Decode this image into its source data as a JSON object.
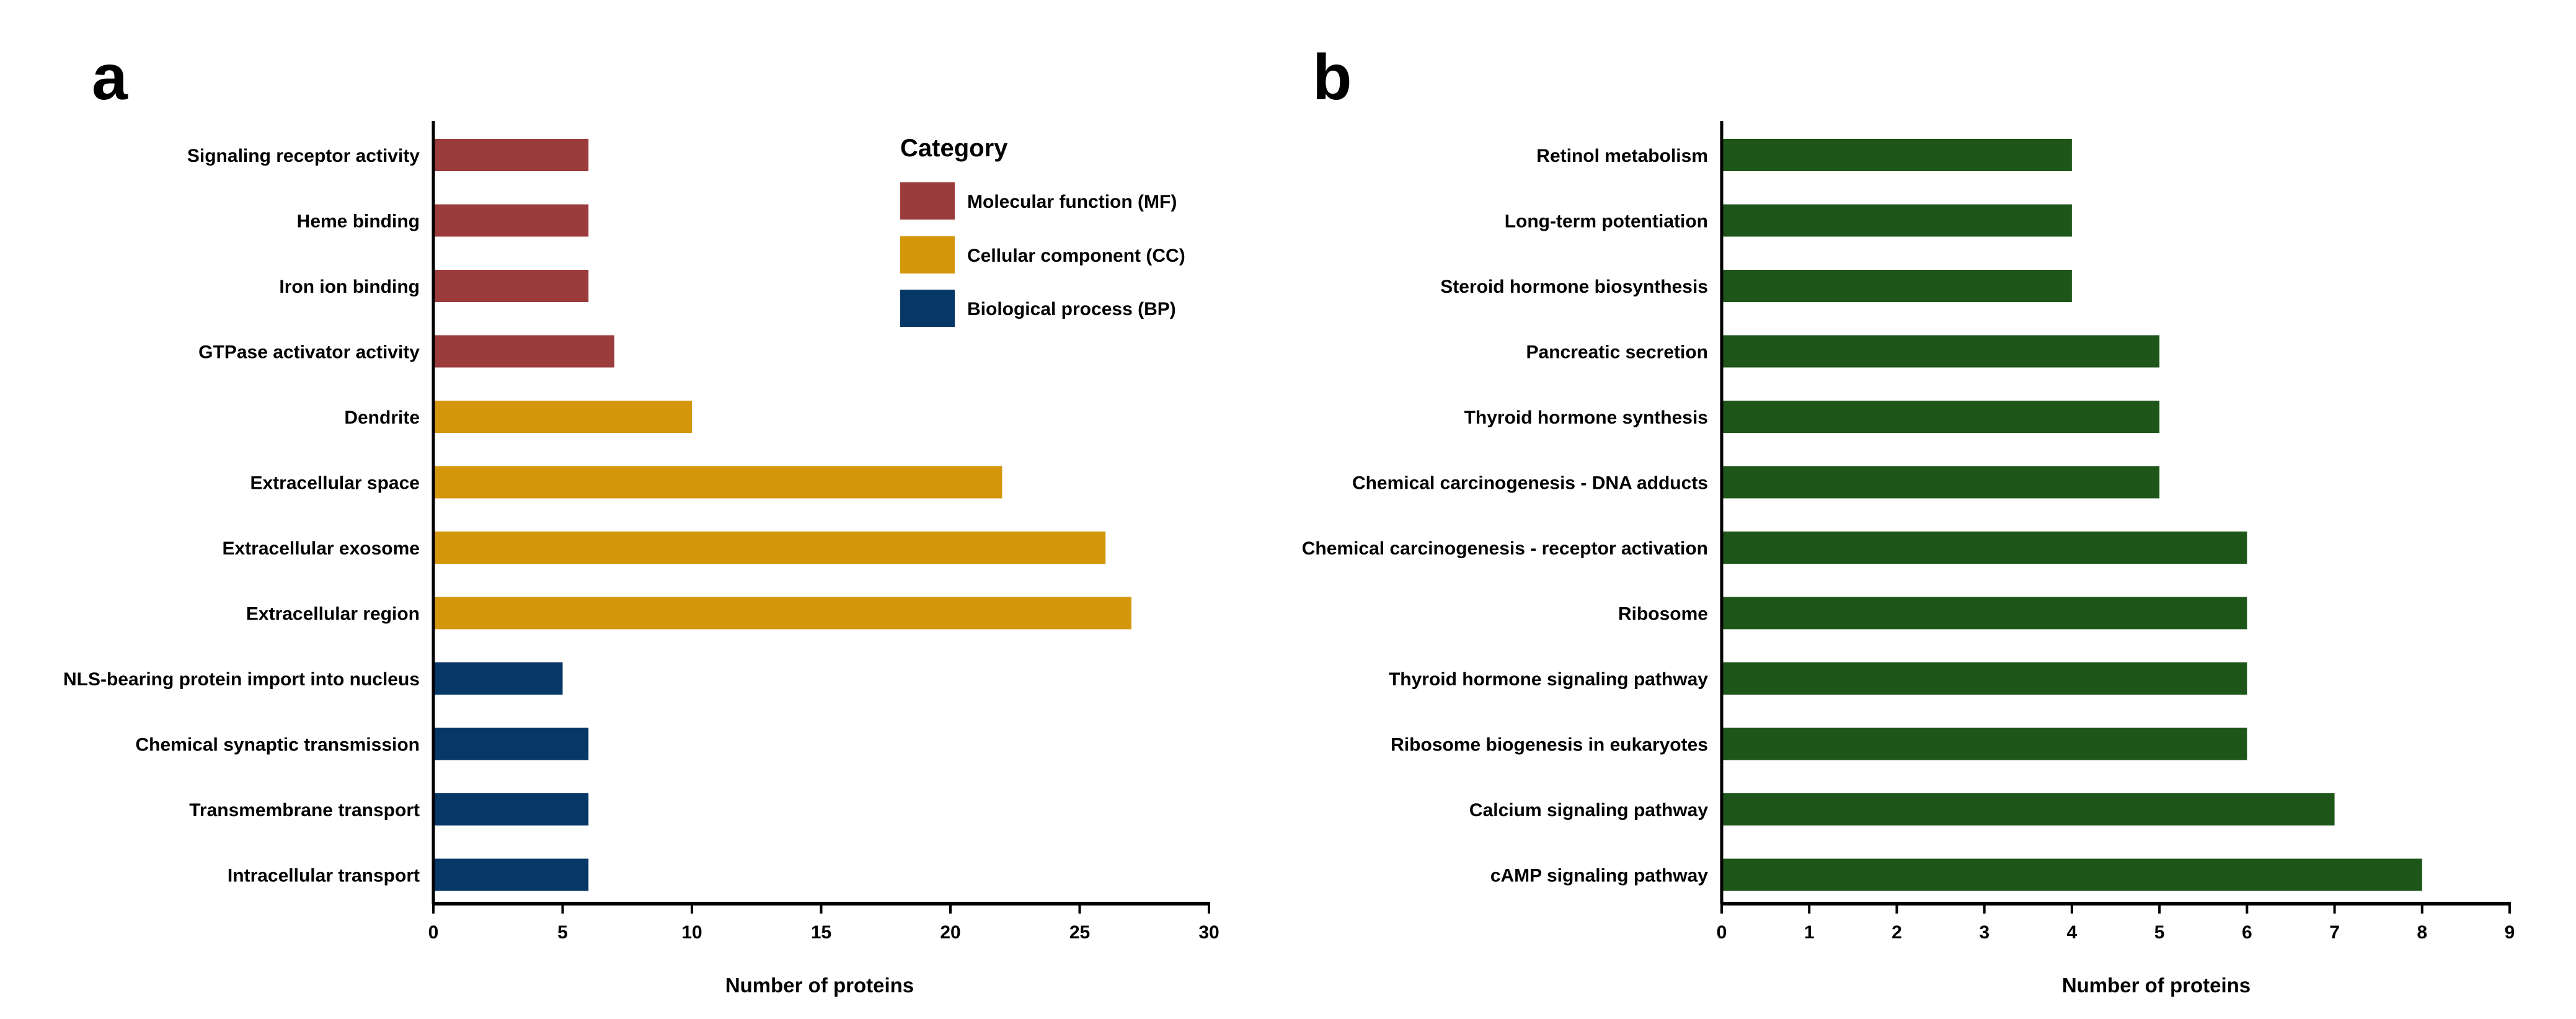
{
  "chart_data": [
    {
      "type": "bar",
      "orientation": "horizontal",
      "panel_label": "a",
      "xlabel": "Number of proteins",
      "ylabel": "",
      "xlim": [
        0,
        30
      ],
      "xticks": [
        "0",
        "5",
        "10",
        "15",
        "20",
        "25",
        "30"
      ],
      "legend": {
        "title": "Category",
        "placement": "top-right",
        "entries": [
          {
            "label": "Molecular function (MF)",
            "color": "#9B3B3C"
          },
          {
            "label": "Cellular component (CC)",
            "color": "#D4960A"
          },
          {
            "label": "Biological process (BP)",
            "color": "#063766"
          }
        ]
      },
      "categories": [
        "Signaling receptor activity",
        "Heme binding",
        "Iron ion binding",
        "GTPase activator activity",
        "Dendrite",
        "Extracellular space",
        "Extracellular exosome",
        "Extracellular region",
        "NLS-bearing protein import into nucleus",
        "Chemical synaptic transmission",
        "Transmembrane transport",
        "Intracellular transport"
      ],
      "values": [
        6,
        6,
        6,
        7,
        10,
        22,
        26,
        27,
        5,
        6,
        6,
        6
      ],
      "groups": [
        0,
        0,
        0,
        0,
        1,
        1,
        1,
        1,
        2,
        2,
        2,
        2
      ]
    },
    {
      "type": "bar",
      "orientation": "horizontal",
      "panel_label": "b",
      "xlabel": "Number of proteins",
      "ylabel": "",
      "xlim": [
        0,
        9
      ],
      "xticks": [
        "0",
        "1",
        "2",
        "3",
        "4",
        "5",
        "6",
        "7",
        "8",
        "9"
      ],
      "bar_color": "#1E5518",
      "categories": [
        "Retinol metabolism",
        "Long-term potentiation",
        "Steroid hormone biosynthesis",
        "Pancreatic secretion",
        "Thyroid hormone synthesis",
        "Chemical carcinogenesis - DNA adducts",
        "Chemical carcinogenesis - receptor activation",
        "Ribosome",
        "Thyroid hormone signaling pathway",
        "Ribosome biogenesis in eukaryotes",
        "Calcium signaling pathway",
        "cAMP signaling pathway"
      ],
      "values": [
        4,
        4,
        4,
        5,
        5,
        5,
        6,
        6,
        6,
        6,
        7,
        8
      ]
    }
  ]
}
